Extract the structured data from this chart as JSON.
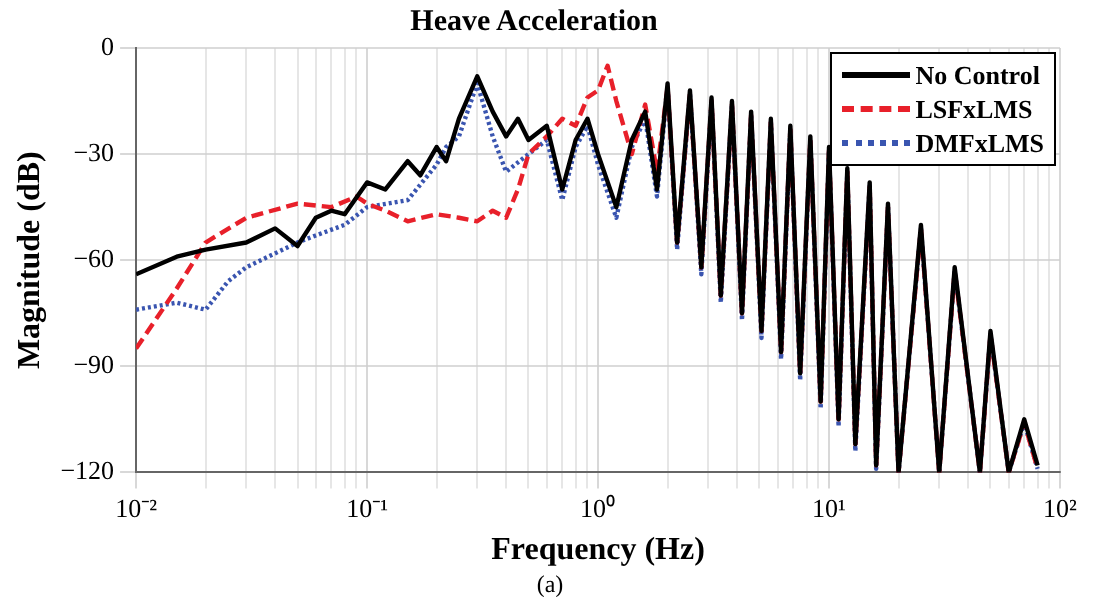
{
  "chart_data": {
    "type": "line",
    "title": "Heave Acceleration",
    "xlabel": "Frequency (Hz)",
    "ylabel": "Magnitude (dB)",
    "annotations": [
      "(a)"
    ],
    "log": "x",
    "grid": true,
    "legend": "top right",
    "marker": "none",
    "xlim": [
      0.01,
      100
    ],
    "ylim": [
      -120,
      0
    ],
    "yticks": [
      -120,
      -90,
      -60,
      -30,
      0
    ],
    "xticks": [
      {
        "value": 0.01,
        "label": "10⁻²"
      },
      {
        "value": 0.02,
        "label": null
      },
      {
        "value": 0.03,
        "label": null
      },
      {
        "value": 0.04,
        "label": null
      },
      {
        "value": 0.05,
        "label": null
      },
      {
        "value": 0.06,
        "label": null
      },
      {
        "value": 0.07,
        "label": null
      },
      {
        "value": 0.08,
        "label": null
      },
      {
        "value": 0.09,
        "label": null
      },
      {
        "value": 0.1,
        "label": "10⁻¹"
      },
      {
        "value": 0.2,
        "label": null
      },
      {
        "value": 0.3,
        "label": null
      },
      {
        "value": 0.4,
        "label": null
      },
      {
        "value": 0.5,
        "label": null
      },
      {
        "value": 0.6,
        "label": null
      },
      {
        "value": 0.7,
        "label": null
      },
      {
        "value": 0.8,
        "label": null
      },
      {
        "value": 0.9,
        "label": null
      },
      {
        "value": 1,
        "label": "10⁰"
      },
      {
        "value": 2,
        "label": null
      },
      {
        "value": 3,
        "label": null
      },
      {
        "value": 4,
        "label": null
      },
      {
        "value": 5,
        "label": null
      },
      {
        "value": 6,
        "label": null
      },
      {
        "value": 7,
        "label": null
      },
      {
        "value": 8,
        "label": null
      },
      {
        "value": 9,
        "label": null
      },
      {
        "value": 10,
        "label": "10¹"
      },
      {
        "value": 20,
        "label": null
      },
      {
        "value": 30,
        "label": null
      },
      {
        "value": 40,
        "label": null
      },
      {
        "value": 50,
        "label": null
      },
      {
        "value": 60,
        "label": null
      },
      {
        "value": 70,
        "label": null
      },
      {
        "value": 80,
        "label": null
      },
      {
        "value": 90,
        "label": null
      },
      {
        "value": 100,
        "label": "10²"
      }
    ],
    "series": [
      {
        "name": "No Control",
        "color": "#000000",
        "line_style": "solid",
        "x": [
          0.01,
          0.015,
          0.02,
          0.03,
          0.04,
          0.05,
          0.06,
          0.07,
          0.08,
          0.1,
          0.12,
          0.15,
          0.17,
          0.2,
          0.22,
          0.25,
          0.3,
          0.35,
          0.4,
          0.45,
          0.5,
          0.6,
          0.7,
          0.8,
          0.9,
          1.0,
          1.2,
          1.4,
          1.6,
          1.8,
          2.0,
          2.2,
          2.5,
          2.8,
          3.1,
          3.4,
          3.8,
          4.2,
          4.6,
          5.1,
          5.6,
          6.2,
          6.8,
          7.5,
          8.3,
          9.2,
          10,
          11,
          12,
          13,
          15,
          16,
          18,
          20,
          25,
          30,
          35,
          45,
          50,
          60,
          70,
          80
        ],
        "values": [
          -64,
          -59,
          -57,
          -55,
          -51,
          -56,
          -48,
          -46,
          -47,
          -38,
          -40,
          -32,
          -36,
          -28,
          -32,
          -20,
          -8,
          -18,
          -25,
          -20,
          -26,
          -22,
          -40,
          -26,
          -20,
          -30,
          -45,
          -26,
          -18,
          -40,
          -10,
          -55,
          -12,
          -62,
          -14,
          -70,
          -15,
          -75,
          -18,
          -80,
          -20,
          -86,
          -22,
          -92,
          -25,
          -100,
          -28,
          -105,
          -34,
          -112,
          -38,
          -118,
          -44,
          -120,
          -50,
          -120,
          -62,
          -120,
          -80,
          -120,
          -105,
          -118
        ]
      },
      {
        "name": "LSFxLMS",
        "color": "#e8202a",
        "line_style": "dashed",
        "x": [
          0.01,
          0.015,
          0.02,
          0.03,
          0.05,
          0.07,
          0.09,
          0.1,
          0.12,
          0.15,
          0.2,
          0.25,
          0.3,
          0.35,
          0.4,
          0.45,
          0.5,
          0.6,
          0.7,
          0.8,
          0.9,
          1.0,
          1.1,
          1.2,
          1.4,
          1.6,
          1.8,
          2.0,
          2.2,
          2.5,
          2.8,
          3.1,
          3.4,
          3.8,
          4.2,
          4.6,
          5.1,
          5.6,
          6.2,
          6.8,
          7.5,
          8.3,
          9.2,
          10,
          11,
          12,
          13,
          15,
          16,
          18,
          20,
          25,
          30,
          35,
          45,
          50,
          60,
          70,
          80
        ],
        "values": [
          -85,
          -68,
          -55,
          -48,
          -44,
          -45,
          -42,
          -44,
          -46,
          -49,
          -47,
          -48,
          -49,
          -46,
          -48,
          -40,
          -30,
          -25,
          -20,
          -22,
          -14,
          -12,
          -5,
          -15,
          -30,
          -16,
          -35,
          -11,
          -55,
          -13,
          -62,
          -15,
          -70,
          -16,
          -75,
          -19,
          -80,
          -21,
          -86,
          -23,
          -92,
          -26,
          -100,
          -29,
          -105,
          -35,
          -112,
          -39,
          -118,
          -45,
          -120,
          -51,
          -120,
          -63,
          -120,
          -81,
          -120,
          -106,
          -119
        ]
      },
      {
        "name": "DMFxLMS",
        "color": "#3a55b0",
        "line_style": "dotted",
        "x": [
          0.01,
          0.015,
          0.02,
          0.025,
          0.03,
          0.05,
          0.06,
          0.08,
          0.1,
          0.15,
          0.2,
          0.22,
          0.25,
          0.3,
          0.35,
          0.4,
          0.5,
          0.6,
          0.7,
          0.8,
          0.9,
          1.0,
          1.2,
          1.4,
          1.6,
          1.8,
          2.0,
          2.2,
          2.5,
          2.8,
          3.1,
          3.4,
          3.8,
          4.2,
          4.6,
          5.1,
          5.6,
          6.2,
          6.8,
          7.5,
          8.3,
          9.2,
          10,
          11,
          12,
          13,
          15,
          16,
          18,
          20,
          25,
          30,
          35,
          45,
          50,
          60,
          70,
          80
        ],
        "values": [
          -74,
          -72,
          -74,
          -66,
          -62,
          -55,
          -53,
          -50,
          -45,
          -43,
          -33,
          -28,
          -25,
          -10,
          -25,
          -35,
          -30,
          -26,
          -43,
          -28,
          -22,
          -33,
          -48,
          -28,
          -20,
          -42,
          -11,
          -57,
          -13,
          -64,
          -15,
          -72,
          -16,
          -77,
          -19,
          -82,
          -21,
          -88,
          -23,
          -94,
          -26,
          -102,
          -29,
          -107,
          -35,
          -114,
          -39,
          -119,
          -45,
          -120,
          -51,
          -120,
          -63,
          -120,
          -81,
          -120,
          -106,
          -119
        ]
      }
    ]
  }
}
